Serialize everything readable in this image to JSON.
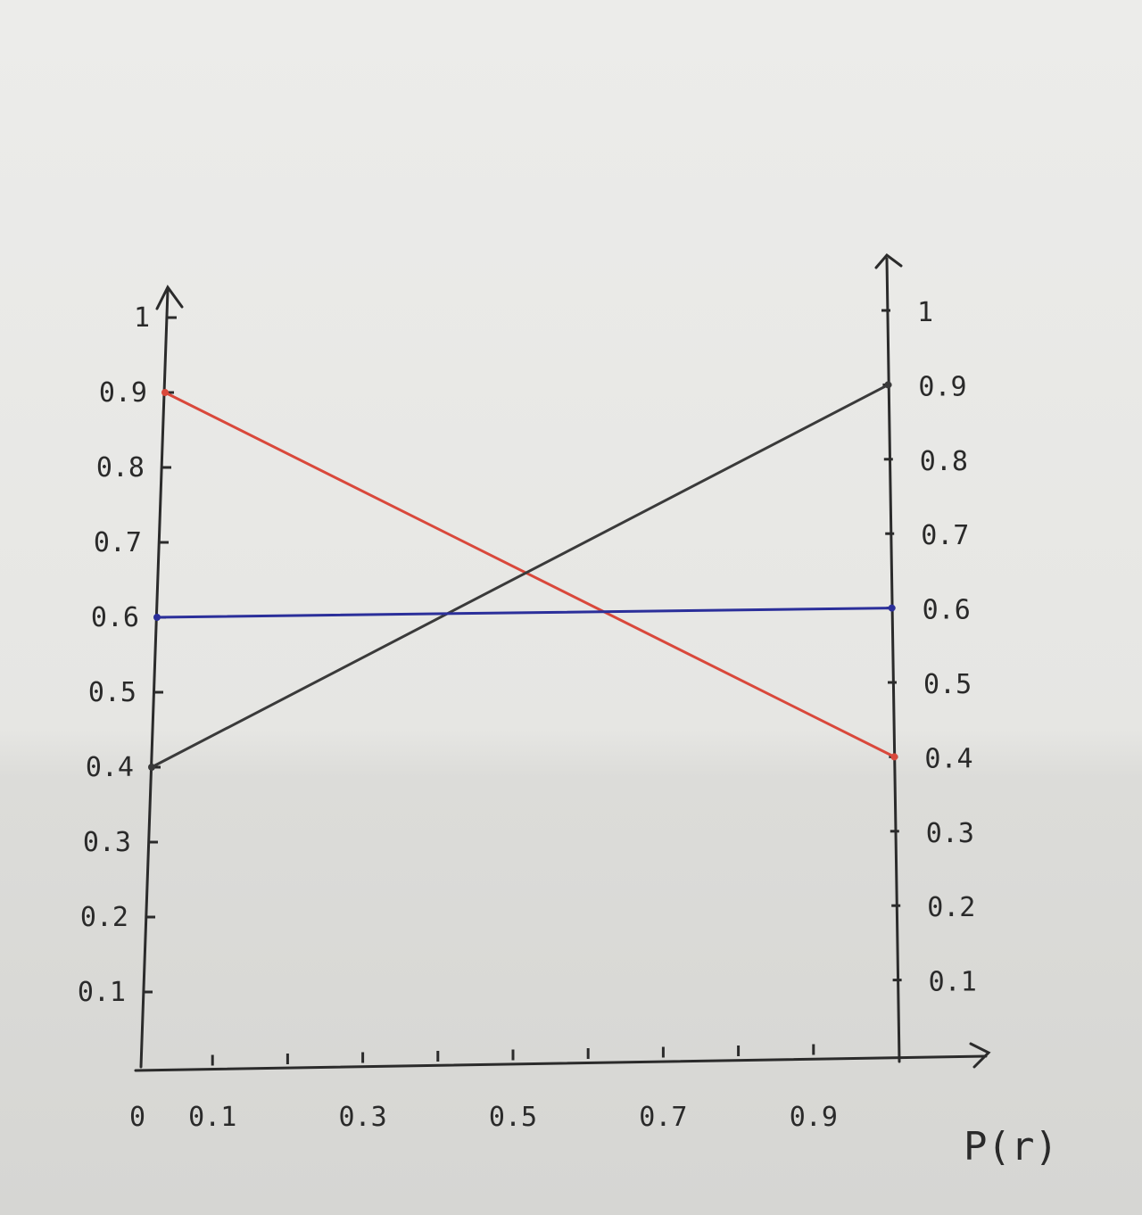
{
  "chart_data": {
    "type": "line",
    "xlabel": "P(r)",
    "ylabel": "",
    "xlim": [
      0,
      1
    ],
    "ylim": [
      0,
      1
    ],
    "x_tick_labels": [
      "0",
      "0.1",
      "0.3",
      "0.5",
      "0.7",
      "0.9"
    ],
    "x_tick_values": [
      0,
      0.1,
      0.3,
      0.5,
      0.7,
      0.9
    ],
    "y_left_tick_labels": [
      "0.1",
      "0.2",
      "0.3",
      "0.4",
      "0.5",
      "0.6",
      "0.7",
      "0.8",
      "0.9",
      "1"
    ],
    "y_right_tick_labels": [
      "0.1",
      "0.2",
      "0.3",
      "0.4",
      "0.5",
      "0.6",
      "0.7",
      "0.8",
      "0.9",
      "1"
    ],
    "y_tick_values": [
      0.1,
      0.2,
      0.3,
      0.4,
      0.5,
      0.6,
      0.7,
      0.8,
      0.9,
      1
    ],
    "grid": false,
    "series": [
      {
        "color": "#d9483b",
        "x": [
          0,
          1
        ],
        "y": [
          0.9,
          0.4
        ]
      },
      {
        "color": "#3a3a3a",
        "x": [
          0,
          1
        ],
        "y": [
          0.4,
          0.9
        ]
      },
      {
        "color": "#2b2f9a",
        "x": [
          0,
          1
        ],
        "y": [
          0.6,
          0.6
        ]
      }
    ]
  }
}
